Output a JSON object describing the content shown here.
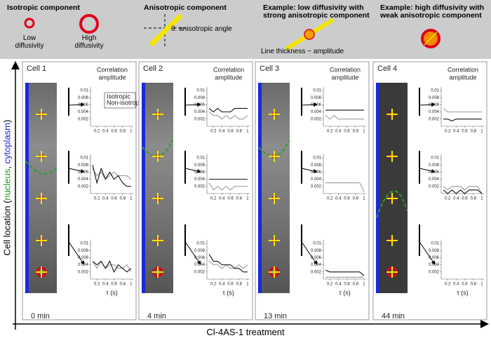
{
  "header": {
    "isotropic": {
      "title": "Isotropic component",
      "low": "Low diffusivity",
      "high": "High diffusivity"
    },
    "anisotropic": {
      "title": "Anisotropic component",
      "angle": "θ: anisotropic angle"
    },
    "example1": {
      "title": "Example: low diffusivity with strong anisotropic component",
      "note": "Line thickness ~ amplitude"
    },
    "example2": {
      "title": "Example: high diffusivity with weak anisotropic component"
    }
  },
  "y_axis_label": [
    "Cell location (",
    "nucleus",
    ", ",
    "cytoplasm",
    ")"
  ],
  "x_axis_label": "Cl-4AS-1 treatment",
  "plot_axes": {
    "x": [
      0.1,
      0.2,
      0.3,
      0.4,
      0.5,
      0.6,
      0.7,
      0.8,
      0.9,
      1.0
    ],
    "xlim": [
      0.05,
      1.05
    ],
    "ylim": [
      0,
      0.011
    ],
    "xticks": [
      0.2,
      0.4,
      0.6,
      0.8,
      1
    ],
    "yticks": [
      0.002,
      0.004,
      0.006,
      0.008,
      0.01
    ],
    "xlabel": "τ (s)",
    "ylabel": [
      "Correlation",
      "amplitude"
    ]
  },
  "legend": [
    {
      "name": "Isotropic",
      "color": "#9a9a9a"
    },
    {
      "name": "Non-isotropic",
      "color": "#111111"
    }
  ],
  "panels": [
    {
      "label": "Cell 1",
      "time": "0 min",
      "plots": [
        {
          "series": []
        },
        {
          "series": [
            {
              "values": [
                0.007,
                0.005,
                0.006,
                0.004,
                0.005,
                0.006,
                0.005,
                0.005,
                0.005,
                0.004
              ]
            },
            {
              "values": [
                0.008,
                0.003,
                0.007,
                0.004,
                0.006,
                0.004,
                0.005,
                0.003,
                0.002,
                0.002
              ]
            }
          ]
        },
        {
          "series": [
            {
              "values": [
                0.005,
                0.003,
                0.005,
                0.003,
                0.004,
                0.004,
                0.003,
                0.003,
                0.004,
                0.002
              ]
            },
            {
              "values": [
                0.005,
                0.004,
                0.005,
                0.003,
                0.005,
                0.002,
                0.004,
                0.003,
                0.002,
                0.003
              ]
            }
          ]
        }
      ]
    },
    {
      "label": "Cell 2",
      "time": "4 min",
      "plots": [
        {
          "series": [
            {
              "values": [
                0.004,
                0.003,
                0.003,
                0.002,
                0.003,
                0.002,
                0.003,
                0.002,
                0.002,
                0.003
              ]
            },
            {
              "values": [
                0.005,
                0.004,
                0.005,
                0.004,
                0.004,
                0.004,
                0.005,
                0.005,
                0.005,
                0.005
              ]
            }
          ]
        },
        {
          "series": [
            {
              "values": [
                0.003,
                0.001,
                0.002,
                0.001,
                0.002,
                0.001,
                0.002,
                0.002,
                0.002,
                0.002
              ]
            },
            {
              "values": [
                0.004,
                0.004,
                0.004,
                0.004,
                0.004,
                0.004,
                0.004,
                0.004,
                0.004,
                0.004
              ]
            }
          ]
        },
        {
          "series": [
            {
              "values": [
                0.005,
                0.004,
                0.004,
                0.003,
                0.004,
                0.003,
                0.003,
                0.004,
                0.003,
                0.004
              ]
            },
            {
              "values": [
                0.007,
                0.005,
                0.005,
                0.004,
                0.004,
                0.004,
                0.003,
                0.003,
                0.002,
                0.002
              ]
            }
          ]
        }
      ]
    },
    {
      "label": "Cell 3",
      "time": "13 min",
      "plots": [
        {
          "series": [
            {
              "values": [
                0.003,
                0.002,
                0.003,
                0.002,
                0.002,
                0.002,
                0.002,
                0.002,
                0.002,
                0.002
              ]
            },
            {
              "values": [
                0.0045,
                0.0045,
                0.0045,
                0.0045,
                0.0045,
                0.0045,
                0.0045,
                0.0045,
                0.0045,
                0.0045
              ]
            }
          ]
        },
        {
          "series": [
            {
              "values": [
                0.003,
                0.003,
                0.003,
                0.003,
                0.003,
                0.003,
                0.003,
                0.003,
                0.003,
                0.0005
              ]
            }
          ]
        },
        {
          "series": [
            {
              "values": [
                0.0005,
                0.0005,
                0.0005,
                0.0005,
                0.0005,
                0.0005,
                0.0005,
                0.0005,
                0.0005,
                0.0005
              ]
            },
            {
              "values": [
                0.0025,
                0.002,
                0.002,
                0.002,
                0.002,
                0.002,
                0.002,
                0.002,
                0.002,
                0.001
              ]
            }
          ]
        }
      ]
    },
    {
      "label": "Cell 4",
      "time": "44 min",
      "plots": [
        {
          "series": [
            {
              "values": [
                0.005,
                0.004,
                0.004,
                0.004,
                0.004,
                0.004,
                0.004,
                0.004,
                0.004,
                0.004
              ]
            },
            {
              "values": [
                0.002,
                0.002,
                0.0015,
                0.002,
                0.002,
                0.002,
                0.002,
                0.002,
                0.002,
                0.002
              ]
            }
          ]
        },
        {
          "series": [
            {
              "values": [
                0.002,
                0.001,
                0.002,
                0.002,
                0.002,
                0.001,
                0.002,
                0.002,
                0.002,
                0
              ]
            },
            {
              "values": [
                0.001,
                0,
                0.001,
                0,
                0.001,
                0,
                0.001,
                0.001,
                0.001,
                0
              ]
            }
          ]
        },
        {
          "series": []
        }
      ]
    }
  ]
}
